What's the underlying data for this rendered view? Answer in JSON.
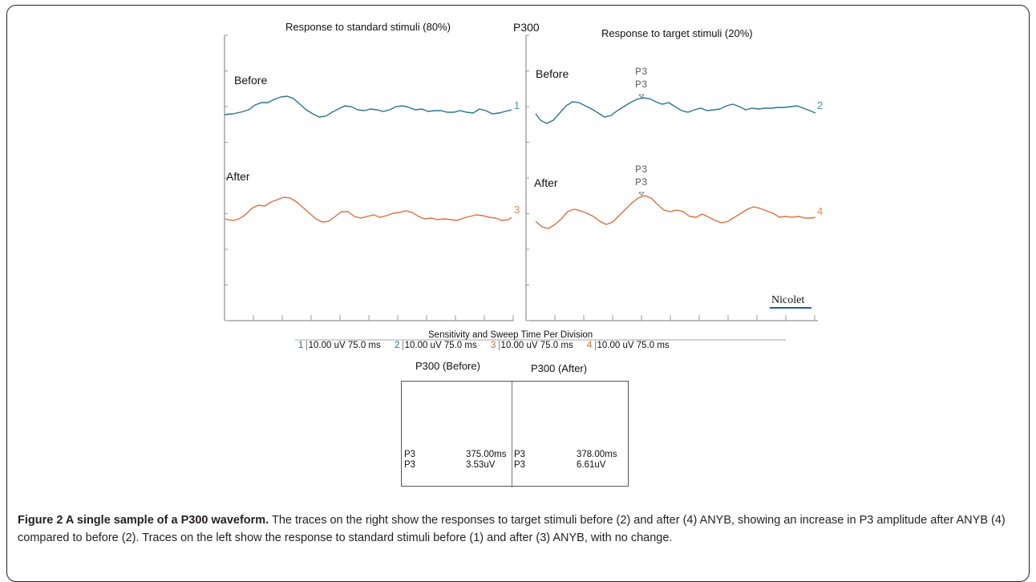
{
  "figure": {
    "top_title_left": "Response to standard stimuli (80%)",
    "top_title_center": "P300",
    "top_title_right": "Response to target stimuli (20%)",
    "label_before_left": "Before",
    "label_after_left": "After",
    "label_before_right": "Before",
    "label_after_right": "After",
    "trace_numbers": [
      "1",
      "2",
      "3",
      "4"
    ],
    "peak_marker_top": [
      "P3",
      "P3"
    ],
    "peak_marker_bottom": [
      "P3",
      "P3"
    ],
    "brand": "Nicolet",
    "sensitivity_title": "Sensitivity and Sweep Time Per Division",
    "channels": [
      {
        "num": "1",
        "setting": "10.00 uV  75.0 ms",
        "color": "#1f6e93"
      },
      {
        "num": "2",
        "setting": "10.00 uV  75.0 ms",
        "color": "#1f6e93"
      },
      {
        "num": "3",
        "setting": "10.00 uV  75.0 ms",
        "color": "#d66a36"
      },
      {
        "num": "4",
        "setting": "10.00 uV  75.0 ms",
        "color": "#d66a36"
      }
    ],
    "summary": {
      "before_title": "P300 (Before)",
      "after_title": "P300 (After)",
      "before_rows": [
        {
          "label": "P3",
          "value": "375.00ms"
        },
        {
          "label": "P3",
          "value": "3.53uV"
        }
      ],
      "after_rows": [
        {
          "label": "P3",
          "value": "378.00ms"
        },
        {
          "label": "P3",
          "value": "6.61uV"
        }
      ]
    },
    "colors": {
      "blue_trace": "#2a7390",
      "orange_trace": "#d9703e",
      "brand_underline": "#1f5f9a"
    }
  },
  "caption": {
    "label": "Figure 2 A single sample of a P300 waveform.",
    "text": " The traces on the right show the responses to target stimuli before (2) and after (4) ANYB, showing an increase in P3 amplitude after ANYB (4) compared to before (2). Traces on the left show the response to standard stimuli before (1) and after (3) ANYB, with no change."
  }
}
